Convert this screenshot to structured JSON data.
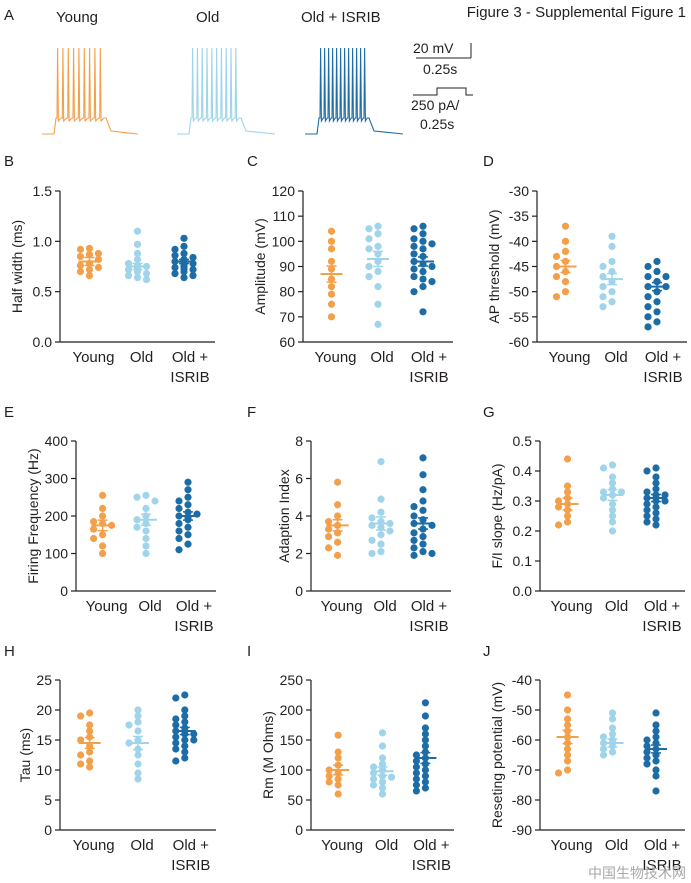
{
  "figure": {
    "title": "Figure 3 - Supplemental Figure 1",
    "watermark": "中国生物技术网"
  },
  "colors": {
    "young": "#f3a04a",
    "old": "#9fd4ea",
    "isrib": "#1d6ca5",
    "axis": "#231f20"
  },
  "panel_a": {
    "letter": "A",
    "labels": [
      "Young",
      "Old",
      "Old + ISRIB"
    ],
    "scalebar_voltage": "20 mV",
    "scalebar_time_1": "0.25s",
    "scalebar_current": "250 pA/",
    "scalebar_time_2": "0.25s",
    "spike_counts": [
      9,
      10,
      12
    ]
  },
  "chart_data": [
    {
      "id": "B",
      "letter": "B",
      "type": "scatter",
      "ylabel": "Half width (ms)",
      "ylim": [
        0.0,
        1.5
      ],
      "yticks": [
        0.0,
        0.5,
        1.0,
        1.5
      ],
      "ytick_labels": [
        "0.0",
        "0.5",
        "1.0",
        "1.5"
      ],
      "categories": [
        "Young",
        "Old",
        "Old + ISRIB"
      ],
      "category_rows": [
        [
          "Young",
          "Old",
          "Old +"
        ],
        [
          "",
          "",
          "ISRIB"
        ]
      ],
      "series": [
        {
          "name": "Young",
          "values": [
            0.92,
            0.93,
            0.88,
            0.87,
            0.85,
            0.82,
            0.78,
            0.76,
            0.74,
            0.72,
            0.7,
            0.66
          ],
          "mean": 0.8,
          "sem": 0.04
        },
        {
          "name": "Old",
          "values": [
            1.1,
            0.97,
            0.88,
            0.82,
            0.78,
            0.76,
            0.75,
            0.74,
            0.72,
            0.7,
            0.68,
            0.66,
            0.64,
            0.62
          ],
          "mean": 0.75,
          "sem": 0.03
        },
        {
          "name": "Old + ISRIB",
          "values": [
            1.03,
            0.95,
            0.92,
            0.88,
            0.86,
            0.84,
            0.82,
            0.81,
            0.8,
            0.79,
            0.78,
            0.77,
            0.76,
            0.75,
            0.74,
            0.73,
            0.72,
            0.7,
            0.68,
            0.66,
            0.64
          ],
          "mean": 0.8,
          "sem": 0.02
        }
      ]
    },
    {
      "id": "C",
      "letter": "C",
      "type": "scatter",
      "ylabel": "Amplitude (mV)",
      "ylim": [
        60,
        120
      ],
      "yticks": [
        60,
        70,
        80,
        90,
        100,
        110,
        120
      ],
      "ytick_labels": [
        "60",
        "70",
        "80",
        "90",
        "100",
        "110",
        "120"
      ],
      "categories": [
        "Young",
        "Old",
        "Old + ISRIB"
      ],
      "category_rows": [
        [
          "Young",
          "Old",
          "Old +"
        ],
        [
          "",
          "",
          "ISRIB"
        ]
      ],
      "series": [
        {
          "name": "Young",
          "values": [
            104,
            100,
            97,
            92,
            89,
            85,
            82,
            79,
            75,
            70
          ],
          "mean": 87,
          "sem": 3.2
        },
        {
          "name": "Old",
          "values": [
            106,
            105,
            103,
            101,
            98,
            97,
            95,
            92,
            90,
            88,
            86,
            82,
            75,
            67
          ],
          "mean": 93,
          "sem": 3.0
        },
        {
          "name": "Old + ISRIB",
          "values": [
            106,
            105,
            103,
            101,
            100,
            99,
            98,
            97,
            95,
            94,
            92,
            91,
            90,
            89,
            88,
            86,
            85,
            84,
            82,
            80,
            72
          ],
          "mean": 92,
          "sem": 1.8
        }
      ]
    },
    {
      "id": "D",
      "letter": "D",
      "type": "scatter",
      "ylabel": "AP threshold (mV)",
      "ylim": [
        -60,
        -30
      ],
      "yticks": [
        -60,
        -55,
        -50,
        -45,
        -40,
        -35,
        -30
      ],
      "ytick_labels": [
        "-60",
        "-55",
        "-50",
        "-45",
        "-40",
        "-35",
        "-30"
      ],
      "categories": [
        "Young",
        "Old",
        "Old + ISRIB"
      ],
      "category_rows": [
        [
          "Young",
          "Old",
          "Old +"
        ],
        [
          "",
          "",
          "ISRIB"
        ]
      ],
      "series": [
        {
          "name": "Young",
          "values": [
            -37,
            -40,
            -42,
            -43,
            -44,
            -45,
            -46,
            -47,
            -48,
            -50,
            -51
          ],
          "mean": -45,
          "sem": 1.2
        },
        {
          "name": "Old",
          "values": [
            -39,
            -41,
            -44,
            -45,
            -46,
            -47,
            -48,
            -49,
            -50,
            -51,
            -52,
            -53
          ],
          "mean": -47.5,
          "sem": 1.1
        },
        {
          "name": "Old + ISRIB",
          "values": [
            -44,
            -45,
            -46,
            -47,
            -47,
            -48,
            -48,
            -49,
            -49,
            -50,
            -50,
            -51,
            -52,
            -53,
            -54,
            -55,
            -56,
            -57
          ],
          "mean": -49,
          "sem": 0.8
        }
      ]
    },
    {
      "id": "E",
      "letter": "E",
      "type": "scatter",
      "ylabel": "Firing Frequency (Hz)",
      "ylim": [
        0,
        400
      ],
      "yticks": [
        0,
        100,
        200,
        300,
        400
      ],
      "ytick_labels": [
        "0",
        "100",
        "200",
        "300",
        "400"
      ],
      "categories": [
        "Young",
        "Old",
        "Old + ISRIB"
      ],
      "category_rows": [
        [
          "Young",
          "Old",
          "Old +"
        ],
        [
          "",
          "",
          "ISRIB"
        ]
      ],
      "series": [
        {
          "name": "Young",
          "values": [
            255,
            220,
            200,
            185,
            180,
            175,
            165,
            150,
            140,
            120,
            100
          ],
          "mean": 175,
          "sem": 14
        },
        {
          "name": "Old",
          "values": [
            255,
            250,
            240,
            220,
            200,
            190,
            180,
            170,
            160,
            140,
            120,
            100
          ],
          "mean": 190,
          "sem": 15
        },
        {
          "name": "Old + ISRIB",
          "values": [
            290,
            270,
            250,
            240,
            230,
            220,
            210,
            205,
            200,
            195,
            190,
            180,
            170,
            160,
            150,
            140,
            125,
            110
          ],
          "mean": 200,
          "sem": 11
        }
      ]
    },
    {
      "id": "F",
      "letter": "F",
      "type": "scatter",
      "ylabel": "Adaption Index",
      "ylim": [
        0,
        8
      ],
      "yticks": [
        0,
        2,
        4,
        6,
        8
      ],
      "ytick_labels": [
        "0",
        "2",
        "4",
        "6",
        "8"
      ],
      "categories": [
        "Young",
        "Old",
        "Old + ISRIB"
      ],
      "category_rows": [
        [
          "Young",
          "Old",
          "Old +"
        ],
        [
          "",
          "",
          "ISRIB"
        ]
      ],
      "series": [
        {
          "name": "Young",
          "values": [
            5.8,
            4.6,
            4.0,
            3.7,
            3.5,
            3.3,
            3.1,
            2.9,
            2.6,
            2.3,
            1.9
          ],
          "mean": 3.5,
          "sem": 0.3
        },
        {
          "name": "Old",
          "values": [
            6.9,
            4.9,
            4.2,
            3.9,
            3.7,
            3.6,
            3.5,
            3.4,
            3.2,
            3.0,
            2.7,
            2.5,
            2.1,
            2.0
          ],
          "mean": 3.6,
          "sem": 0.35
        },
        {
          "name": "Old + ISRIB",
          "values": [
            7.1,
            6.2,
            5.4,
            4.8,
            4.5,
            4.3,
            4.0,
            3.8,
            3.6,
            3.5,
            3.3,
            3.1,
            2.9,
            2.7,
            2.5,
            2.3,
            2.1,
            2.0,
            1.9
          ],
          "mean": 3.6,
          "sem": 0.3
        }
      ]
    },
    {
      "id": "G",
      "letter": "G",
      "type": "scatter",
      "ylabel": "F/I slope (Hz/pA)",
      "ylim": [
        0.0,
        0.5
      ],
      "yticks": [
        0.0,
        0.1,
        0.2,
        0.3,
        0.4,
        0.5
      ],
      "ytick_labels": [
        "0.0",
        "0.1",
        "0.2",
        "0.3",
        "0.4",
        "0.5"
      ],
      "categories": [
        "Young",
        "Old",
        "Old + ISRIB"
      ],
      "category_rows": [
        [
          "Young",
          "Old",
          "Old +"
        ],
        [
          "",
          "",
          "ISRIB"
        ]
      ],
      "series": [
        {
          "name": "Young",
          "values": [
            0.44,
            0.35,
            0.33,
            0.31,
            0.3,
            0.29,
            0.28,
            0.27,
            0.25,
            0.23,
            0.22
          ],
          "mean": 0.29,
          "sem": 0.02
        },
        {
          "name": "Old",
          "values": [
            0.42,
            0.41,
            0.38,
            0.36,
            0.34,
            0.33,
            0.33,
            0.32,
            0.31,
            0.29,
            0.27,
            0.25,
            0.23,
            0.2
          ],
          "mean": 0.32,
          "sem": 0.018
        },
        {
          "name": "Old + ISRIB",
          "values": [
            0.41,
            0.4,
            0.38,
            0.36,
            0.34,
            0.33,
            0.32,
            0.32,
            0.31,
            0.3,
            0.3,
            0.29,
            0.28,
            0.27,
            0.26,
            0.25,
            0.24,
            0.23,
            0.22
          ],
          "mean": 0.31,
          "sem": 0.012
        }
      ]
    },
    {
      "id": "H",
      "letter": "H",
      "type": "scatter",
      "ylabel": "Tau (ms)",
      "ylim": [
        0,
        25
      ],
      "yticks": [
        0,
        5,
        10,
        15,
        20,
        25
      ],
      "ytick_labels": [
        "0",
        "5",
        "10",
        "15",
        "20",
        "25"
      ],
      "categories": [
        "Young",
        "Old",
        "Old + ISRIB"
      ],
      "category_rows": [
        [
          "Young",
          "Old",
          "Old +"
        ],
        [
          "",
          "",
          "ISRIB"
        ]
      ],
      "series": [
        {
          "name": "Young",
          "values": [
            19.5,
            19.0,
            17.5,
            16.5,
            15.5,
            15.0,
            14.0,
            13.0,
            12.5,
            11.5,
            11.0,
            10.5
          ],
          "mean": 14.5,
          "sem": 0.9
        },
        {
          "name": "Old",
          "values": [
            20.0,
            19.0,
            18.0,
            17.5,
            16.5,
            15.0,
            14.5,
            13.5,
            12.5,
            11.0,
            9.5,
            8.5
          ],
          "mean": 14.5,
          "sem": 1.1
        },
        {
          "name": "Old + ISRIB",
          "values": [
            22.5,
            22.0,
            20.0,
            19.0,
            18.5,
            18.0,
            17.5,
            17.0,
            16.5,
            16.0,
            16.0,
            15.5,
            15.0,
            15.0,
            14.5,
            14.0,
            13.5,
            13.0,
            12.0,
            11.5
          ],
          "mean": 16.5,
          "sem": 0.6
        }
      ]
    },
    {
      "id": "I",
      "letter": "I",
      "type": "scatter",
      "ylabel": "Rm (M Ohms)",
      "ylim": [
        0,
        250
      ],
      "yticks": [
        0,
        50,
        100,
        150,
        200,
        250
      ],
      "ytick_labels": [
        "0",
        "50",
        "100",
        "150",
        "200",
        "250"
      ],
      "categories": [
        "Young",
        "Old",
        "Old + ISRIB"
      ],
      "category_rows": [
        [
          "Young",
          "Old",
          "Old +"
        ],
        [
          "",
          "",
          "ISRIB"
        ]
      ],
      "series": [
        {
          "name": "Young",
          "values": [
            158,
            130,
            120,
            108,
            100,
            95,
            90,
            85,
            80,
            75,
            60
          ],
          "mean": 100,
          "sem": 8
        },
        {
          "name": "Old",
          "values": [
            162,
            140,
            120,
            110,
            105,
            100,
            95,
            90,
            88,
            85,
            80,
            75,
            70,
            60
          ],
          "mean": 98,
          "sem": 7
        },
        {
          "name": "Old + ISRIB",
          "values": [
            212,
            190,
            170,
            160,
            150,
            140,
            130,
            125,
            120,
            115,
            110,
            105,
            100,
            95,
            90,
            85,
            80,
            75,
            70,
            65
          ],
          "mean": 120,
          "sem": 9
        }
      ]
    },
    {
      "id": "J",
      "letter": "J",
      "type": "scatter",
      "ylabel": "Reseting potential (mV)",
      "ylim": [
        -90,
        -40
      ],
      "yticks": [
        -90,
        -80,
        -70,
        -60,
        -50,
        -40
      ],
      "ytick_labels": [
        "-90",
        "-80",
        "-70",
        "-60",
        "-50",
        "-40"
      ],
      "categories": [
        "Young",
        "Old",
        "Old + ISRIB"
      ],
      "category_rows": [
        [
          "Young",
          "Old",
          "Old +"
        ],
        [
          "",
          "",
          "ISRIB"
        ]
      ],
      "series": [
        {
          "name": "Young",
          "values": [
            -45,
            -50,
            -53,
            -55,
            -57,
            -59,
            -61,
            -63,
            -65,
            -67,
            -70,
            -71
          ],
          "mean": -59,
          "sem": 2.2
        },
        {
          "name": "Old",
          "values": [
            -51,
            -53,
            -56,
            -58,
            -59,
            -60,
            -61,
            -62,
            -63,
            -64,
            -65
          ],
          "mean": -61,
          "sem": 1.3
        },
        {
          "name": "Old + ISRIB",
          "values": [
            -51,
            -55,
            -57,
            -59,
            -60,
            -61,
            -62,
            -63,
            -64,
            -65,
            -66,
            -67,
            -68,
            -70,
            -72,
            -77
          ],
          "mean": -63,
          "sem": 1.3
        }
      ]
    }
  ]
}
